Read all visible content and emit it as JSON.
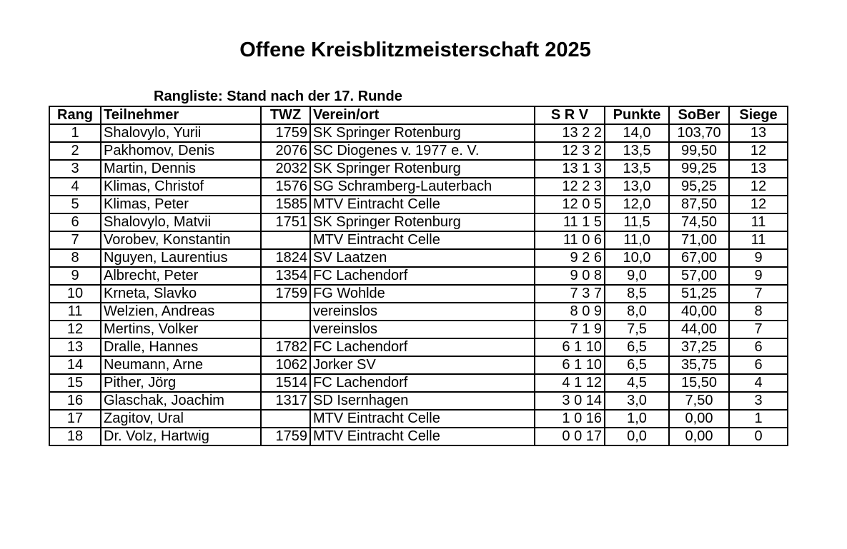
{
  "title": "Offene Kreisblitzmeisterschaft 2025",
  "subtitle": "Rangliste: Stand nach der 17. Runde",
  "columns": {
    "rang": "Rang",
    "teilnehmer": "Teilnehmer",
    "twz": "TWZ",
    "verein": "Verein/ort",
    "srv": "S R V",
    "punkte": "Punkte",
    "sober": "SoBer",
    "siege": "Siege"
  },
  "rows": [
    {
      "rang": "1",
      "name": "Shalovylo, Yurii",
      "twz": "1759",
      "verein": "SK Springer Rotenburg",
      "srv": "13 2 2",
      "punkte": "14,0",
      "sober": "103,70",
      "siege": "13"
    },
    {
      "rang": "2",
      "name": "Pakhomov, Denis",
      "twz": "2076",
      "verein": "SC Diogenes v. 1977 e. V.",
      "srv": "12 3 2",
      "punkte": "13,5",
      "sober": "99,50",
      "siege": "12"
    },
    {
      "rang": "3",
      "name": "Martin, Dennis",
      "twz": "2032",
      "verein": "SK Springer Rotenburg",
      "srv": "13 1 3",
      "punkte": "13,5",
      "sober": "99,25",
      "siege": "13"
    },
    {
      "rang": "4",
      "name": "Klimas, Christof",
      "twz": "1576",
      "verein": "SG Schramberg-Lauterbach",
      "srv": "12 2 3",
      "punkte": "13,0",
      "sober": "95,25",
      "siege": "12"
    },
    {
      "rang": "5",
      "name": "Klimas, Peter",
      "twz": "1585",
      "verein": "MTV Eintracht Celle",
      "srv": "12 0 5",
      "punkte": "12,0",
      "sober": "87,50",
      "siege": "12"
    },
    {
      "rang": "6",
      "name": "Shalovylo, Matvii",
      "twz": "1751",
      "verein": "SK Springer Rotenburg",
      "srv": "11 1 5",
      "punkte": "11,5",
      "sober": "74,50",
      "siege": "11"
    },
    {
      "rang": "7",
      "name": "Vorobev, Konstantin",
      "twz": "",
      "verein": "MTV Eintracht Celle",
      "srv": "11 0 6",
      "punkte": "11,0",
      "sober": "71,00",
      "siege": "11"
    },
    {
      "rang": "8",
      "name": "Nguyen, Laurentius",
      "twz": "1824",
      "verein": "SV Laatzen",
      "srv": "9  2 6",
      "punkte": "10,0",
      "sober": "67,00",
      "siege": "9"
    },
    {
      "rang": "9",
      "name": "Albrecht, Peter",
      "twz": "1354",
      "verein": "FC Lachendorf",
      "srv": "9  0 8",
      "punkte": "9,0",
      "sober": "57,00",
      "siege": "9"
    },
    {
      "rang": "10",
      "name": "Krneta, Slavko",
      "twz": "1759",
      "verein": "FG Wohlde",
      "srv": "7  3 7",
      "punkte": "8,5",
      "sober": "51,25",
      "siege": "7"
    },
    {
      "rang": "11",
      "name": "Welzien, Andreas",
      "twz": "",
      "verein": "vereinslos",
      "srv": "8  0 9",
      "punkte": "8,0",
      "sober": "40,00",
      "siege": "8"
    },
    {
      "rang": "12",
      "name": "Mertins, Volker",
      "twz": "",
      "verein": "vereinslos",
      "srv": "7  1 9",
      "punkte": "7,5",
      "sober": "44,00",
      "siege": "7"
    },
    {
      "rang": "13",
      "name": "Dralle, Hannes",
      "twz": "1782",
      "verein": "FC Lachendorf",
      "srv": "6  1 10",
      "punkte": "6,5",
      "sober": "37,25",
      "siege": "6"
    },
    {
      "rang": "14",
      "name": "Neumann, Arne",
      "twz": "1062",
      "verein": "Jorker SV",
      "srv": "6  1 10",
      "punkte": "6,5",
      "sober": "35,75",
      "siege": "6"
    },
    {
      "rang": "15",
      "name": "Pither, Jörg",
      "twz": "1514",
      "verein": "FC Lachendorf",
      "srv": "4  1 12",
      "punkte": "4,5",
      "sober": "15,50",
      "siege": "4"
    },
    {
      "rang": "16",
      "name": "Glaschak, Joachim",
      "twz": "1317",
      "verein": "SD Isernhagen",
      "srv": "3  0 14",
      "punkte": "3,0",
      "sober": "7,50",
      "siege": "3"
    },
    {
      "rang": "17",
      "name": "Zagitov, Ural",
      "twz": "",
      "verein": "MTV Eintracht Celle",
      "srv": "1  0 16",
      "punkte": "1,0",
      "sober": "0,00",
      "siege": "1"
    },
    {
      "rang": "18",
      "name": "Dr. Volz, Hartwig",
      "twz": "1759",
      "verein": "MTV Eintracht Celle",
      "srv": "0  0 17",
      "punkte": "0,0",
      "sober": "0,00",
      "siege": "0"
    }
  ]
}
